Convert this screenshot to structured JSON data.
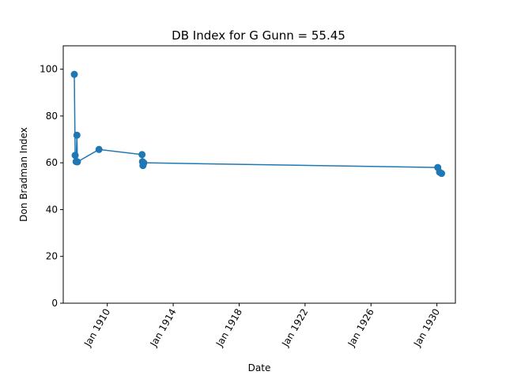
{
  "chart_data": {
    "type": "line",
    "title": "DB Index for G Gunn = 55.45",
    "xlabel": "Date",
    "ylabel": "Don Bradman Index",
    "ylim": [
      0,
      110
    ],
    "xlim": [
      "1907-05-01",
      "1931-02-15"
    ],
    "yticks": [
      0,
      20,
      40,
      60,
      80,
      100
    ],
    "xticks": [
      {
        "date": "1910-01-01",
        "label": "Jan 1910"
      },
      {
        "date": "1914-01-01",
        "label": "Jan 1914"
      },
      {
        "date": "1918-01-01",
        "label": "Jan 1918"
      },
      {
        "date": "1922-01-01",
        "label": "Jan 1922"
      },
      {
        "date": "1926-01-01",
        "label": "Jan 1926"
      },
      {
        "date": "1930-01-01",
        "label": "Jan 1930"
      }
    ],
    "grid": false,
    "line_color": "#1f77b4",
    "series": [
      {
        "points": [
          {
            "x": "1908-01-01",
            "y": 97.8
          },
          {
            "x": "1908-01-20",
            "y": 63.2
          },
          {
            "x": "1908-02-10",
            "y": 60.5
          },
          {
            "x": "1908-02-28",
            "y": 71.8
          },
          {
            "x": "1908-03-10",
            "y": 60.4
          },
          {
            "x": "1909-07-01",
            "y": 65.7
          },
          {
            "x": "1912-02-10",
            "y": 63.5
          },
          {
            "x": "1912-02-20",
            "y": 60.5
          },
          {
            "x": "1912-03-01",
            "y": 58.8
          },
          {
            "x": "1912-03-10",
            "y": 59.5
          },
          {
            "x": "1912-03-20",
            "y": 60.0
          },
          {
            "x": "1930-01-20",
            "y": 58.0
          },
          {
            "x": "1930-03-01",
            "y": 56.0
          },
          {
            "x": "1930-04-15",
            "y": 55.45
          }
        ]
      }
    ]
  }
}
